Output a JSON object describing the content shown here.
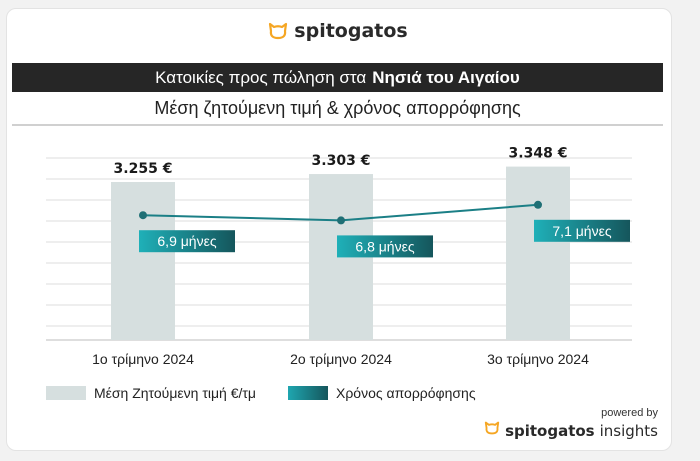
{
  "brand": {
    "name": "spitogatos",
    "icon": "cat-head-icon",
    "accent": "#f5a623"
  },
  "header": {
    "title_prefix": "Κατοικίες προς πώληση στα",
    "title_highlight": "Νησιά του Αιγαίου",
    "subtitle": "Μέση ζητούμενη τιμή & χρόνος απορρόφησης"
  },
  "chart_data": {
    "type": "bar",
    "categories": [
      "1ο τρίμηνο 2024",
      "2ο τρίμηνο 2024",
      "3ο τρίμηνο 2024"
    ],
    "series": [
      {
        "name": "Μέση Ζητούμενη τιμή €/τμ",
        "type": "bar",
        "values": [
          3255,
          3303,
          3348
        ],
        "labels": [
          "3.255 €",
          "3.303 €",
          "3.348 €"
        ],
        "color": "#d6dfdf"
      },
      {
        "name": "Χρόνος απορρόφησης",
        "type": "line",
        "values": [
          6.9,
          6.8,
          7.1
        ],
        "labels": [
          "6,9 μήνες",
          "6,8 μήνες",
          "7,1 μήνες"
        ],
        "color": "#1b7f86"
      }
    ],
    "bar_axis_range": [
      2300,
      3400
    ],
    "line_axis_range": [
      4.5,
      8.0
    ],
    "grid": true,
    "legend": "bottom-left"
  },
  "legend": {
    "bar_label": "Μέση Ζητούμενη τιμή €/τμ",
    "line_label": "Χρόνος απορρόφησης"
  },
  "footer": {
    "powered_by": "powered by",
    "brand_bold": "spitogatos",
    "brand_light": "insights"
  }
}
